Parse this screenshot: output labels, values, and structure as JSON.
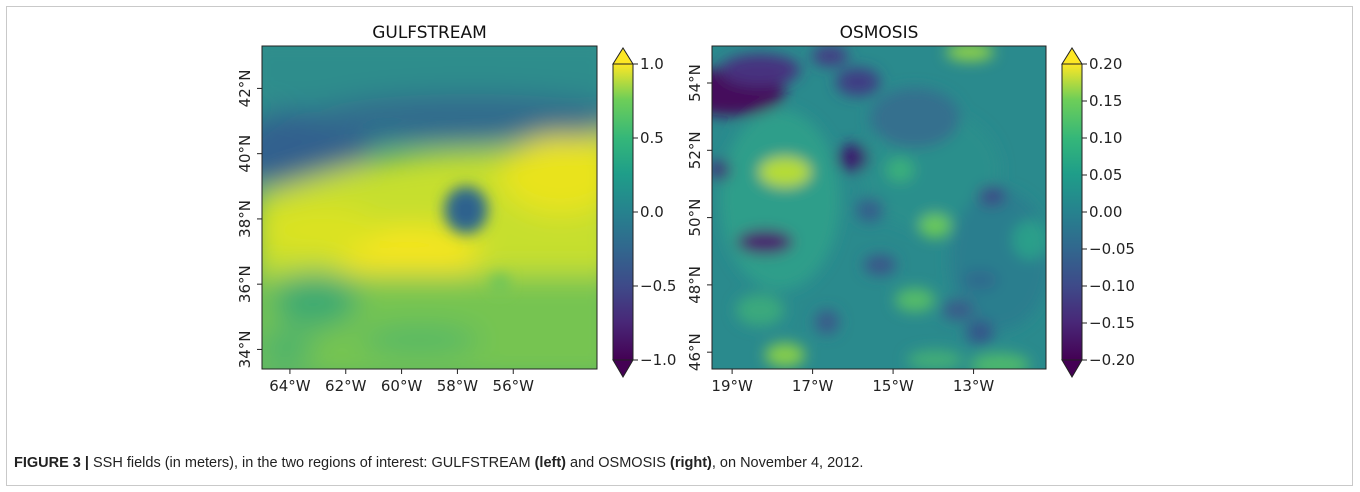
{
  "figure": {
    "caption": {
      "label": "FIGURE 3 |",
      "text_1": " SSH fields (in meters), in the two regions of interest: GULFSTREAM ",
      "left": "(left)",
      "text_2": " and OSMOSIS ",
      "right": "(right)",
      "text_3": ", on November 4, 2012."
    }
  },
  "colormap": "viridis",
  "chart_data": [
    {
      "type": "heatmap",
      "title": "GULFSTREAM",
      "x_ticks": [
        "64°W",
        "62°W",
        "60°W",
        "58°W",
        "56°W"
      ],
      "x_ticks_values": [
        -64,
        -62,
        -60,
        -58,
        -56
      ],
      "x_range": [
        -65,
        -53
      ],
      "y_ticks": [
        "34°N",
        "36°N",
        "38°N",
        "40°N",
        "42°N"
      ],
      "y_ticks_values": [
        34,
        36,
        38,
        40,
        42
      ],
      "y_range": [
        33.4,
        43.3
      ],
      "colorbar": {
        "ticks": [
          "1.0",
          "0.5",
          "0.0",
          "−0.5",
          "−1.0"
        ],
        "tick_values": [
          1.0,
          0.5,
          0.0,
          -0.5,
          -1.0
        ],
        "range": [
          -1.0,
          1.0
        ],
        "extend": "both"
      },
      "features": [
        {
          "kind": "high-ssh-band",
          "value": 0.9,
          "lat_range": [
            36.5,
            40
          ]
        },
        {
          "kind": "cold-eddy",
          "value": -0.2,
          "lon": -58.8,
          "lat": 38.7
        },
        {
          "kind": "northern-low",
          "value": -0.3,
          "lat_range": [
            40,
            42
          ]
        }
      ]
    },
    {
      "type": "heatmap",
      "title": "OSMOSIS",
      "x_ticks": [
        "19°W",
        "17°W",
        "15°W",
        "13°W"
      ],
      "x_ticks_values": [
        -19,
        -17,
        -15,
        -13
      ],
      "x_range": [
        -19.5,
        -11.2
      ],
      "y_ticks": [
        "46°N",
        "48°N",
        "50°N",
        "52°N",
        "54°N"
      ],
      "y_ticks_values": [
        46,
        48,
        50,
        52,
        54
      ],
      "y_range": [
        45.5,
        55.1
      ],
      "colorbar": {
        "ticks": [
          "0.20",
          "0.15",
          "0.10",
          "0.05",
          "0.00",
          "−0.05",
          "−0.10",
          "−0.15",
          "−0.20"
        ],
        "tick_values": [
          0.2,
          0.15,
          0.1,
          0.05,
          0.0,
          -0.05,
          -0.1,
          -0.15,
          -0.2
        ],
        "range": [
          -0.2,
          0.2
        ],
        "extend": "both"
      },
      "features": [
        {
          "kind": "negative-anomaly",
          "value": -0.2,
          "lon": -18.8,
          "lat": 54.2
        },
        {
          "kind": "negative-anomaly",
          "value": -0.2,
          "lon": -15.9,
          "lat": 52.2
        },
        {
          "kind": "negative-anomaly",
          "value": -0.2,
          "lon": -18.2,
          "lat": 50.2
        },
        {
          "kind": "positive-anomaly",
          "value": 0.18,
          "lon": -17.3,
          "lat": 51.8
        }
      ]
    }
  ]
}
